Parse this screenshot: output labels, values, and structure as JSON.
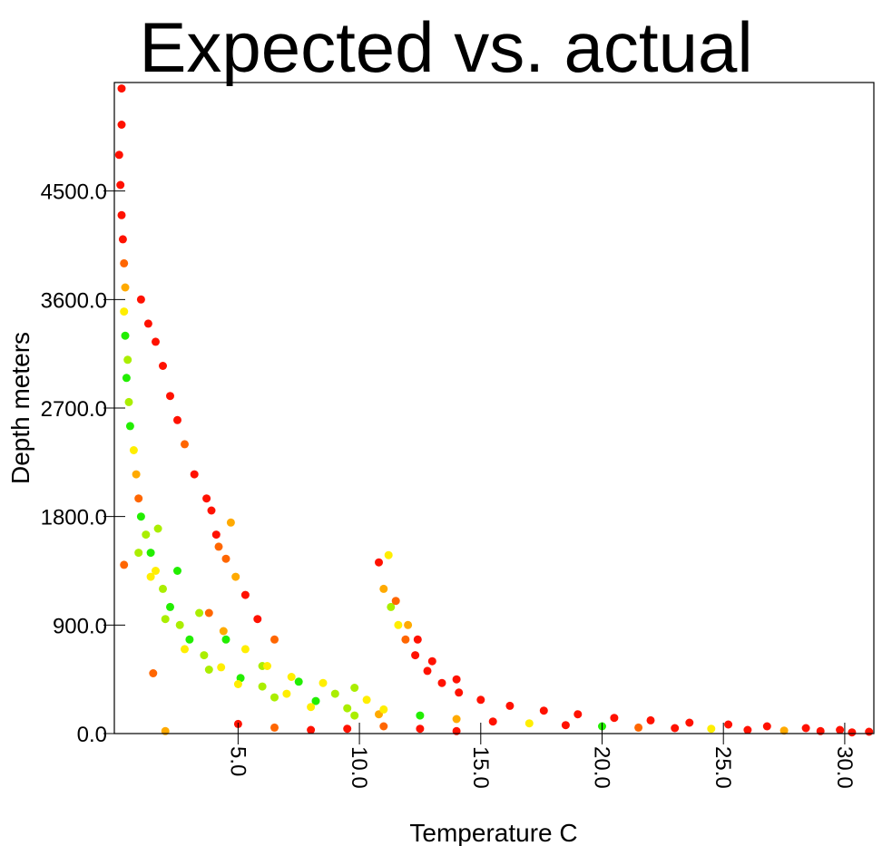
{
  "chart_data": {
    "type": "scatter",
    "title": "Expected vs. actual",
    "xlabel": "Temperature C",
    "ylabel": "Depth meters",
    "xlim": [
      -0.1,
      31.2
    ],
    "ylim": [
      0,
      5400
    ],
    "x_ticks": [
      {
        "value": 5,
        "label": "5.0"
      },
      {
        "value": 10,
        "label": "10.0"
      },
      {
        "value": 15,
        "label": "15.0"
      },
      {
        "value": 20,
        "label": "20.0"
      },
      {
        "value": 25,
        "label": "25.0"
      },
      {
        "value": 30,
        "label": "30.0"
      }
    ],
    "y_ticks": [
      {
        "value": 0,
        "label": "0.0"
      },
      {
        "value": 900,
        "label": "900.0"
      },
      {
        "value": 1800,
        "label": "1800.0"
      },
      {
        "value": 2700,
        "label": "2700.0"
      },
      {
        "value": 3600,
        "label": "3600.0"
      },
      {
        "value": 4500,
        "label": "4500.0"
      }
    ],
    "grid": false,
    "legend": "none",
    "color_scale": [
      "#22ee00",
      "#aaee00",
      "#ffee00",
      "#ffaa00",
      "#ff6600",
      "#ff1100"
    ],
    "series": [
      {
        "values": [
          {
            "x": 0.2,
            "y": 5350,
            "c": 5
          },
          {
            "x": 0.2,
            "y": 5050,
            "c": 5
          },
          {
            "x": 0.1,
            "y": 4800,
            "c": 5
          },
          {
            "x": 0.15,
            "y": 4550,
            "c": 5
          },
          {
            "x": 0.2,
            "y": 4300,
            "c": 5
          },
          {
            "x": 0.25,
            "y": 4100,
            "c": 5
          },
          {
            "x": 0.3,
            "y": 3900,
            "c": 4
          },
          {
            "x": 0.35,
            "y": 3700,
            "c": 3
          },
          {
            "x": 0.3,
            "y": 3500,
            "c": 2
          },
          {
            "x": 0.35,
            "y": 3300,
            "c": 0
          },
          {
            "x": 0.45,
            "y": 3100,
            "c": 1
          },
          {
            "x": 0.4,
            "y": 2950,
            "c": 0
          },
          {
            "x": 0.5,
            "y": 2750,
            "c": 1
          },
          {
            "x": 0.55,
            "y": 2550,
            "c": 0
          },
          {
            "x": 0.7,
            "y": 2350,
            "c": 2
          },
          {
            "x": 0.8,
            "y": 2150,
            "c": 3
          },
          {
            "x": 0.9,
            "y": 1950,
            "c": 4
          },
          {
            "x": 1.0,
            "y": 1800,
            "c": 0
          },
          {
            "x": 1.2,
            "y": 1650,
            "c": 1
          },
          {
            "x": 1.4,
            "y": 1500,
            "c": 0
          },
          {
            "x": 1.6,
            "y": 1350,
            "c": 2
          },
          {
            "x": 1.9,
            "y": 1200,
            "c": 1
          },
          {
            "x": 2.2,
            "y": 1050,
            "c": 0
          },
          {
            "x": 2.6,
            "y": 900,
            "c": 1
          },
          {
            "x": 3.0,
            "y": 780,
            "c": 0
          },
          {
            "x": 3.6,
            "y": 650,
            "c": 1
          },
          {
            "x": 4.3,
            "y": 550,
            "c": 2
          },
          {
            "x": 5.1,
            "y": 460,
            "c": 0
          },
          {
            "x": 6.0,
            "y": 390,
            "c": 1
          },
          {
            "x": 7.0,
            "y": 330,
            "c": 2
          },
          {
            "x": 8.2,
            "y": 270,
            "c": 0
          },
          {
            "x": 9.5,
            "y": 210,
            "c": 1
          },
          {
            "x": 10.8,
            "y": 160,
            "c": 3
          },
          {
            "x": 0.9,
            "y": 1500,
            "c": 1
          },
          {
            "x": 1.4,
            "y": 1300,
            "c": 2
          },
          {
            "x": 2.0,
            "y": 950,
            "c": 1
          },
          {
            "x": 2.8,
            "y": 700,
            "c": 2
          },
          {
            "x": 3.8,
            "y": 530,
            "c": 1
          },
          {
            "x": 5.0,
            "y": 410,
            "c": 2
          },
          {
            "x": 6.5,
            "y": 300,
            "c": 1
          },
          {
            "x": 8.0,
            "y": 220,
            "c": 2
          },
          {
            "x": 9.8,
            "y": 150,
            "c": 1
          },
          {
            "x": 1.7,
            "y": 1700,
            "c": 1
          },
          {
            "x": 2.5,
            "y": 1350,
            "c": 0
          },
          {
            "x": 3.4,
            "y": 1000,
            "c": 1
          },
          {
            "x": 4.5,
            "y": 780,
            "c": 0
          },
          {
            "x": 6.0,
            "y": 560,
            "c": 1
          },
          {
            "x": 7.5,
            "y": 430,
            "c": 0
          },
          {
            "x": 9.0,
            "y": 330,
            "c": 1
          },
          {
            "x": 10.3,
            "y": 280,
            "c": 2
          },
          {
            "x": 3.8,
            "y": 1000,
            "c": 4
          },
          {
            "x": 4.4,
            "y": 850,
            "c": 3
          },
          {
            "x": 5.3,
            "y": 700,
            "c": 2
          },
          {
            "x": 6.2,
            "y": 560,
            "c": 2
          },
          {
            "x": 7.2,
            "y": 470,
            "c": 2
          },
          {
            "x": 8.5,
            "y": 420,
            "c": 2
          },
          {
            "x": 9.8,
            "y": 380,
            "c": 1
          },
          {
            "x": 1.0,
            "y": 3600,
            "c": 5
          },
          {
            "x": 1.3,
            "y": 3400,
            "c": 5
          },
          {
            "x": 1.6,
            "y": 3250,
            "c": 5
          },
          {
            "x": 1.9,
            "y": 3050,
            "c": 5
          },
          {
            "x": 2.2,
            "y": 2800,
            "c": 5
          },
          {
            "x": 2.5,
            "y": 2600,
            "c": 5
          },
          {
            "x": 2.8,
            "y": 2400,
            "c": 4
          },
          {
            "x": 3.2,
            "y": 2150,
            "c": 5
          },
          {
            "x": 3.7,
            "y": 1950,
            "c": 5
          },
          {
            "x": 4.1,
            "y": 1650,
            "c": 5
          },
          {
            "x": 4.5,
            "y": 1450,
            "c": 4
          },
          {
            "x": 3.9,
            "y": 1850,
            "c": 5
          },
          {
            "x": 4.2,
            "y": 1550,
            "c": 4
          },
          {
            "x": 4.9,
            "y": 1300,
            "c": 3
          },
          {
            "x": 4.7,
            "y": 1750,
            "c": 3
          },
          {
            "x": 5.3,
            "y": 1150,
            "c": 5
          },
          {
            "x": 5.8,
            "y": 950,
            "c": 5
          },
          {
            "x": 6.5,
            "y": 780,
            "c": 4
          },
          {
            "x": 10.8,
            "y": 1420,
            "c": 5
          },
          {
            "x": 11.2,
            "y": 1480,
            "c": 2
          },
          {
            "x": 11.0,
            "y": 1200,
            "c": 3
          },
          {
            "x": 11.3,
            "y": 1050,
            "c": 1
          },
          {
            "x": 11.6,
            "y": 900,
            "c": 2
          },
          {
            "x": 11.9,
            "y": 780,
            "c": 4
          },
          {
            "x": 12.3,
            "y": 650,
            "c": 5
          },
          {
            "x": 12.8,
            "y": 520,
            "c": 5
          },
          {
            "x": 13.4,
            "y": 420,
            "c": 5
          },
          {
            "x": 14.1,
            "y": 340,
            "c": 5
          },
          {
            "x": 15.0,
            "y": 280,
            "c": 5
          },
          {
            "x": 16.2,
            "y": 230,
            "c": 5
          },
          {
            "x": 17.6,
            "y": 190,
            "c": 5
          },
          {
            "x": 19.0,
            "y": 160,
            "c": 5
          },
          {
            "x": 20.5,
            "y": 130,
            "c": 5
          },
          {
            "x": 22.0,
            "y": 110,
            "c": 5
          },
          {
            "x": 23.6,
            "y": 90,
            "c": 5
          },
          {
            "x": 25.2,
            "y": 75,
            "c": 5
          },
          {
            "x": 26.8,
            "y": 60,
            "c": 5
          },
          {
            "x": 28.4,
            "y": 45,
            "c": 5
          },
          {
            "x": 29.8,
            "y": 30,
            "c": 5
          },
          {
            "x": 31.0,
            "y": 15,
            "c": 5
          },
          {
            "x": 11.5,
            "y": 1100,
            "c": 4
          },
          {
            "x": 12.0,
            "y": 900,
            "c": 3
          },
          {
            "x": 12.4,
            "y": 780,
            "c": 5
          },
          {
            "x": 13.0,
            "y": 600,
            "c": 5
          },
          {
            "x": 14.0,
            "y": 450,
            "c": 5
          },
          {
            "x": 11.0,
            "y": 200,
            "c": 2
          },
          {
            "x": 12.5,
            "y": 150,
            "c": 0
          },
          {
            "x": 14.0,
            "y": 120,
            "c": 3
          },
          {
            "x": 15.5,
            "y": 100,
            "c": 5
          },
          {
            "x": 17.0,
            "y": 85,
            "c": 2
          },
          {
            "x": 18.5,
            "y": 70,
            "c": 5
          },
          {
            "x": 20.0,
            "y": 60,
            "c": 0
          },
          {
            "x": 21.5,
            "y": 50,
            "c": 4
          },
          {
            "x": 23.0,
            "y": 45,
            "c": 5
          },
          {
            "x": 24.5,
            "y": 40,
            "c": 2
          },
          {
            "x": 26.0,
            "y": 30,
            "c": 5
          },
          {
            "x": 27.5,
            "y": 25,
            "c": 3
          },
          {
            "x": 29.0,
            "y": 20,
            "c": 5
          },
          {
            "x": 30.3,
            "y": 10,
            "c": 5
          },
          {
            "x": 5.0,
            "y": 80,
            "c": 5
          },
          {
            "x": 6.5,
            "y": 50,
            "c": 4
          },
          {
            "x": 8.0,
            "y": 30,
            "c": 5
          },
          {
            "x": 9.5,
            "y": 40,
            "c": 5
          },
          {
            "x": 11.0,
            "y": 60,
            "c": 4
          },
          {
            "x": 12.5,
            "y": 40,
            "c": 5
          },
          {
            "x": 14.0,
            "y": 20,
            "c": 5
          },
          {
            "x": 0.3,
            "y": 1400,
            "c": 4
          },
          {
            "x": 1.5,
            "y": 500,
            "c": 4
          },
          {
            "x": 2.0,
            "y": 20,
            "c": 3
          }
        ]
      }
    ]
  }
}
